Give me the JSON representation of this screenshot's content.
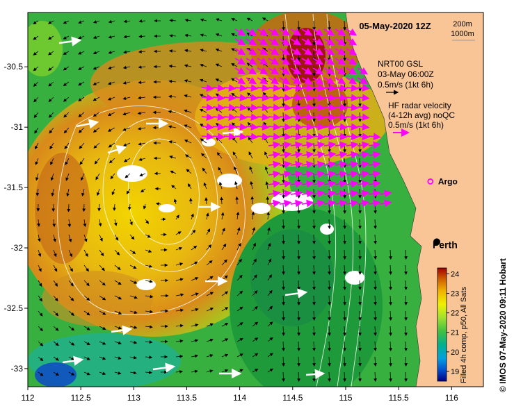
{
  "title": "05-May-2020 12Z",
  "map": {
    "lon_range": [
      112,
      116.3
    ],
    "lat_range": [
      -33.15,
      -30.05
    ],
    "lon_ticks": [
      112,
      112.5,
      113,
      113.5,
      114,
      114.5,
      115,
      115.5,
      116
    ],
    "lon_tick_labels": [
      "112",
      "112.5",
      "113",
      "113.5",
      "114",
      "114.5",
      "115",
      "115.5",
      "116"
    ],
    "lat_ticks": [
      -30.5,
      -31,
      -31.5,
      -32,
      -32.5,
      -33
    ],
    "lat_tick_labels": [
      "-30.5",
      "-31",
      "-31.5",
      "-32",
      "-32.5",
      "-33"
    ],
    "land_color": "#f9c596",
    "ocean_warm_color": "#d98a1a",
    "ocean_cool_color": "#2f9e32",
    "contour_color": "#ffffff",
    "contour_labels": [
      "200m",
      "1000m"
    ]
  },
  "legend": {
    "model_title": "NRT00 GSL",
    "model_time": "03-May 06:00Z",
    "model_scale": "0.5m/s (1kt 6h)",
    "model_arrow_color": "#000000",
    "radar_title": "HF radar velocity",
    "radar_avg": "(4-12h avg) noQC",
    "radar_scale": "0.5m/s (1kt 6h)",
    "radar_arrow_color": "#ff00ff",
    "drifter_arrow_color": "#ffffff"
  },
  "markers": {
    "argo_label": "Argo",
    "argo_lon": 115.8,
    "argo_lat": -31.45,
    "argo_color": "#ff00ff",
    "city_label": "Perth",
    "city_lon": 115.86,
    "city_lat": -31.95
  },
  "colorbar": {
    "label": "Filled 4h comp, p50, All Sats",
    "min": 18.5,
    "max": 24.3,
    "tick_values": [
      19,
      20,
      21,
      22,
      23,
      24
    ],
    "tick_labels": [
      "19",
      "20",
      "21",
      "22",
      "23",
      "24"
    ],
    "colors": [
      "#000080",
      "#0050d0",
      "#00a0e0",
      "#00b090",
      "#40c040",
      "#a0e030",
      "#f0f000",
      "#f0b000",
      "#d06000",
      "#a00000"
    ]
  },
  "credit": "© IMOS 07-May-2020 09:11 Hobart"
}
